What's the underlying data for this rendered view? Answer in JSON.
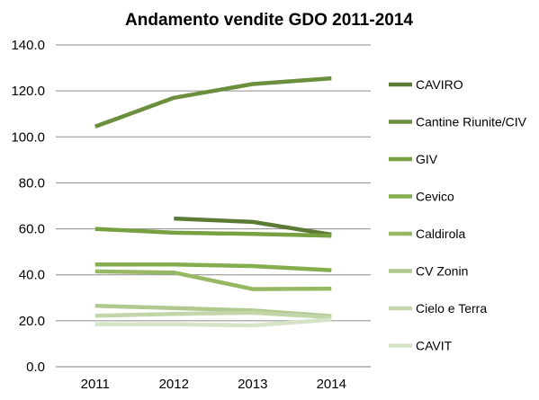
{
  "chart_data": {
    "type": "line",
    "title": "Andamento vendite GDO 2011-2014",
    "xlabel": "",
    "ylabel": "",
    "categories": [
      "2011",
      "2012",
      "2013",
      "2014"
    ],
    "ylim": [
      0,
      140
    ],
    "yticks": [
      "0.0",
      "20.0",
      "40.0",
      "60.0",
      "80.0",
      "100.0",
      "120.0",
      "140.0"
    ],
    "grid": true,
    "legend_position": "right",
    "series": [
      {
        "name": "CAVIRO",
        "color": "#5b7a34",
        "values": [
          null,
          64.5,
          63.0,
          57.5
        ]
      },
      {
        "name": "Cantine Riunite/CIV",
        "color": "#6b8f3d",
        "values": [
          104.5,
          117.0,
          123.0,
          125.5
        ]
      },
      {
        "name": "GIV",
        "color": "#77a043",
        "values": [
          60.0,
          58.3,
          57.8,
          57.0
        ]
      },
      {
        "name": "Cevico",
        "color": "#84ad4d",
        "values": [
          44.5,
          44.5,
          43.8,
          42.0
        ]
      },
      {
        "name": "Caldirola",
        "color": "#97b863",
        "values": [
          41.5,
          41.0,
          33.8,
          34.0
        ]
      },
      {
        "name": "CV Zonin",
        "color": "#b0c98e",
        "values": [
          26.5,
          25.5,
          24.5,
          22.0
        ]
      },
      {
        "name": "Cielo e Terra",
        "color": "#c3d6a9",
        "values": [
          22.2,
          23.0,
          23.5,
          21.5
        ]
      },
      {
        "name": "CAVIT",
        "color": "#d7e3c6",
        "values": [
          18.5,
          18.5,
          18.0,
          20.5
        ]
      }
    ]
  }
}
